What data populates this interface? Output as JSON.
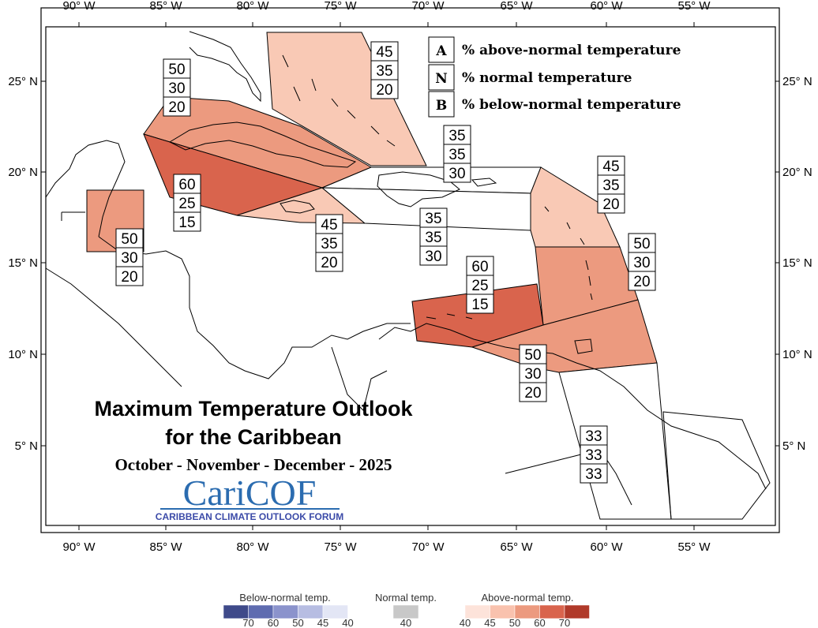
{
  "map": {
    "top_lon_labels": [
      "90° W",
      "85° W",
      "80° W",
      "75° W",
      "70° W",
      "65° W",
      "60° W",
      "55° W"
    ],
    "bottom_lon_labels": [
      "90° W",
      "85° W",
      "80° W",
      "75° W",
      "70° W",
      "65° W",
      "60° W",
      "55° W"
    ],
    "left_lat_labels": [
      "25° N",
      "20° N",
      "15° N",
      "10° N",
      "5° N"
    ],
    "right_lat_labels": [
      "25° N",
      "20° N",
      "15° N",
      "10° N",
      "5° N"
    ]
  },
  "legend_key": [
    {
      "letter": "A",
      "text": "% above-normal temperature"
    },
    {
      "letter": "N",
      "text": "% normal temperature"
    },
    {
      "letter": "B",
      "text": "% below-normal temperature"
    }
  ],
  "title": {
    "line1": "Maximum Temperature Outlook",
    "line2": "for the Caribbean",
    "period": "October - November - December - 2025"
  },
  "logo": {
    "main": "CariCOF",
    "sub": "CARIBBEAN CLIMATE OUTLOOK FORUM"
  },
  "regions": [
    {
      "id": "bahamas",
      "probs": [
        "45",
        "35",
        "20"
      ],
      "fill": "#f9c9b5"
    },
    {
      "id": "cuba-east",
      "probs": [
        "50",
        "30",
        "20"
      ],
      "fill": "#ec9a7f"
    },
    {
      "id": "cuba-west-cayman",
      "probs": [
        "60",
        "25",
        "15"
      ],
      "fill": "#d9644d"
    },
    {
      "id": "jamaica",
      "probs": [
        "45",
        "35",
        "20"
      ],
      "fill": "#f9c9b5"
    },
    {
      "id": "belize",
      "probs": [
        "50",
        "30",
        "20"
      ],
      "fill": "#ec9a7f"
    },
    {
      "id": "hispaniola-north",
      "probs": [
        "35",
        "35",
        "30"
      ],
      "fill": "#ffffff"
    },
    {
      "id": "hispaniola-south",
      "probs": [
        "35",
        "35",
        "30"
      ],
      "fill": "#ffffff"
    },
    {
      "id": "northern-lesser-antilles",
      "probs": [
        "45",
        "35",
        "20"
      ],
      "fill": "#f9c9b5"
    },
    {
      "id": "windward-islands",
      "probs": [
        "50",
        "30",
        "20"
      ],
      "fill": "#ec9a7f"
    },
    {
      "id": "abc-islands",
      "probs": [
        "60",
        "25",
        "15"
      ],
      "fill": "#d9644d"
    },
    {
      "id": "trinidad",
      "probs": [
        "50",
        "30",
        "20"
      ],
      "fill": "#ec9a7f"
    },
    {
      "id": "guianas",
      "probs": [
        "33",
        "33",
        "33"
      ],
      "fill": "#ffffff"
    }
  ],
  "colorbar": {
    "below": {
      "title": "Below-normal temp.",
      "ticks": [
        "70",
        "60",
        "50",
        "45",
        "40"
      ],
      "colors": [
        "#3f4a8a",
        "#5f6cb0",
        "#8b93cc",
        "#b7bde2",
        "#e3e6f5"
      ]
    },
    "normal": {
      "title": "Normal temp.",
      "ticks": [
        "40"
      ],
      "colors": [
        "#c8c8c8"
      ]
    },
    "above": {
      "title": "Above-normal temp.",
      "ticks": [
        "40",
        "45",
        "50",
        "60",
        "70"
      ],
      "colors": [
        "#fde3da",
        "#f9c2ae",
        "#ec9a7f",
        "#d9644d",
        "#b03a2a"
      ]
    }
  }
}
